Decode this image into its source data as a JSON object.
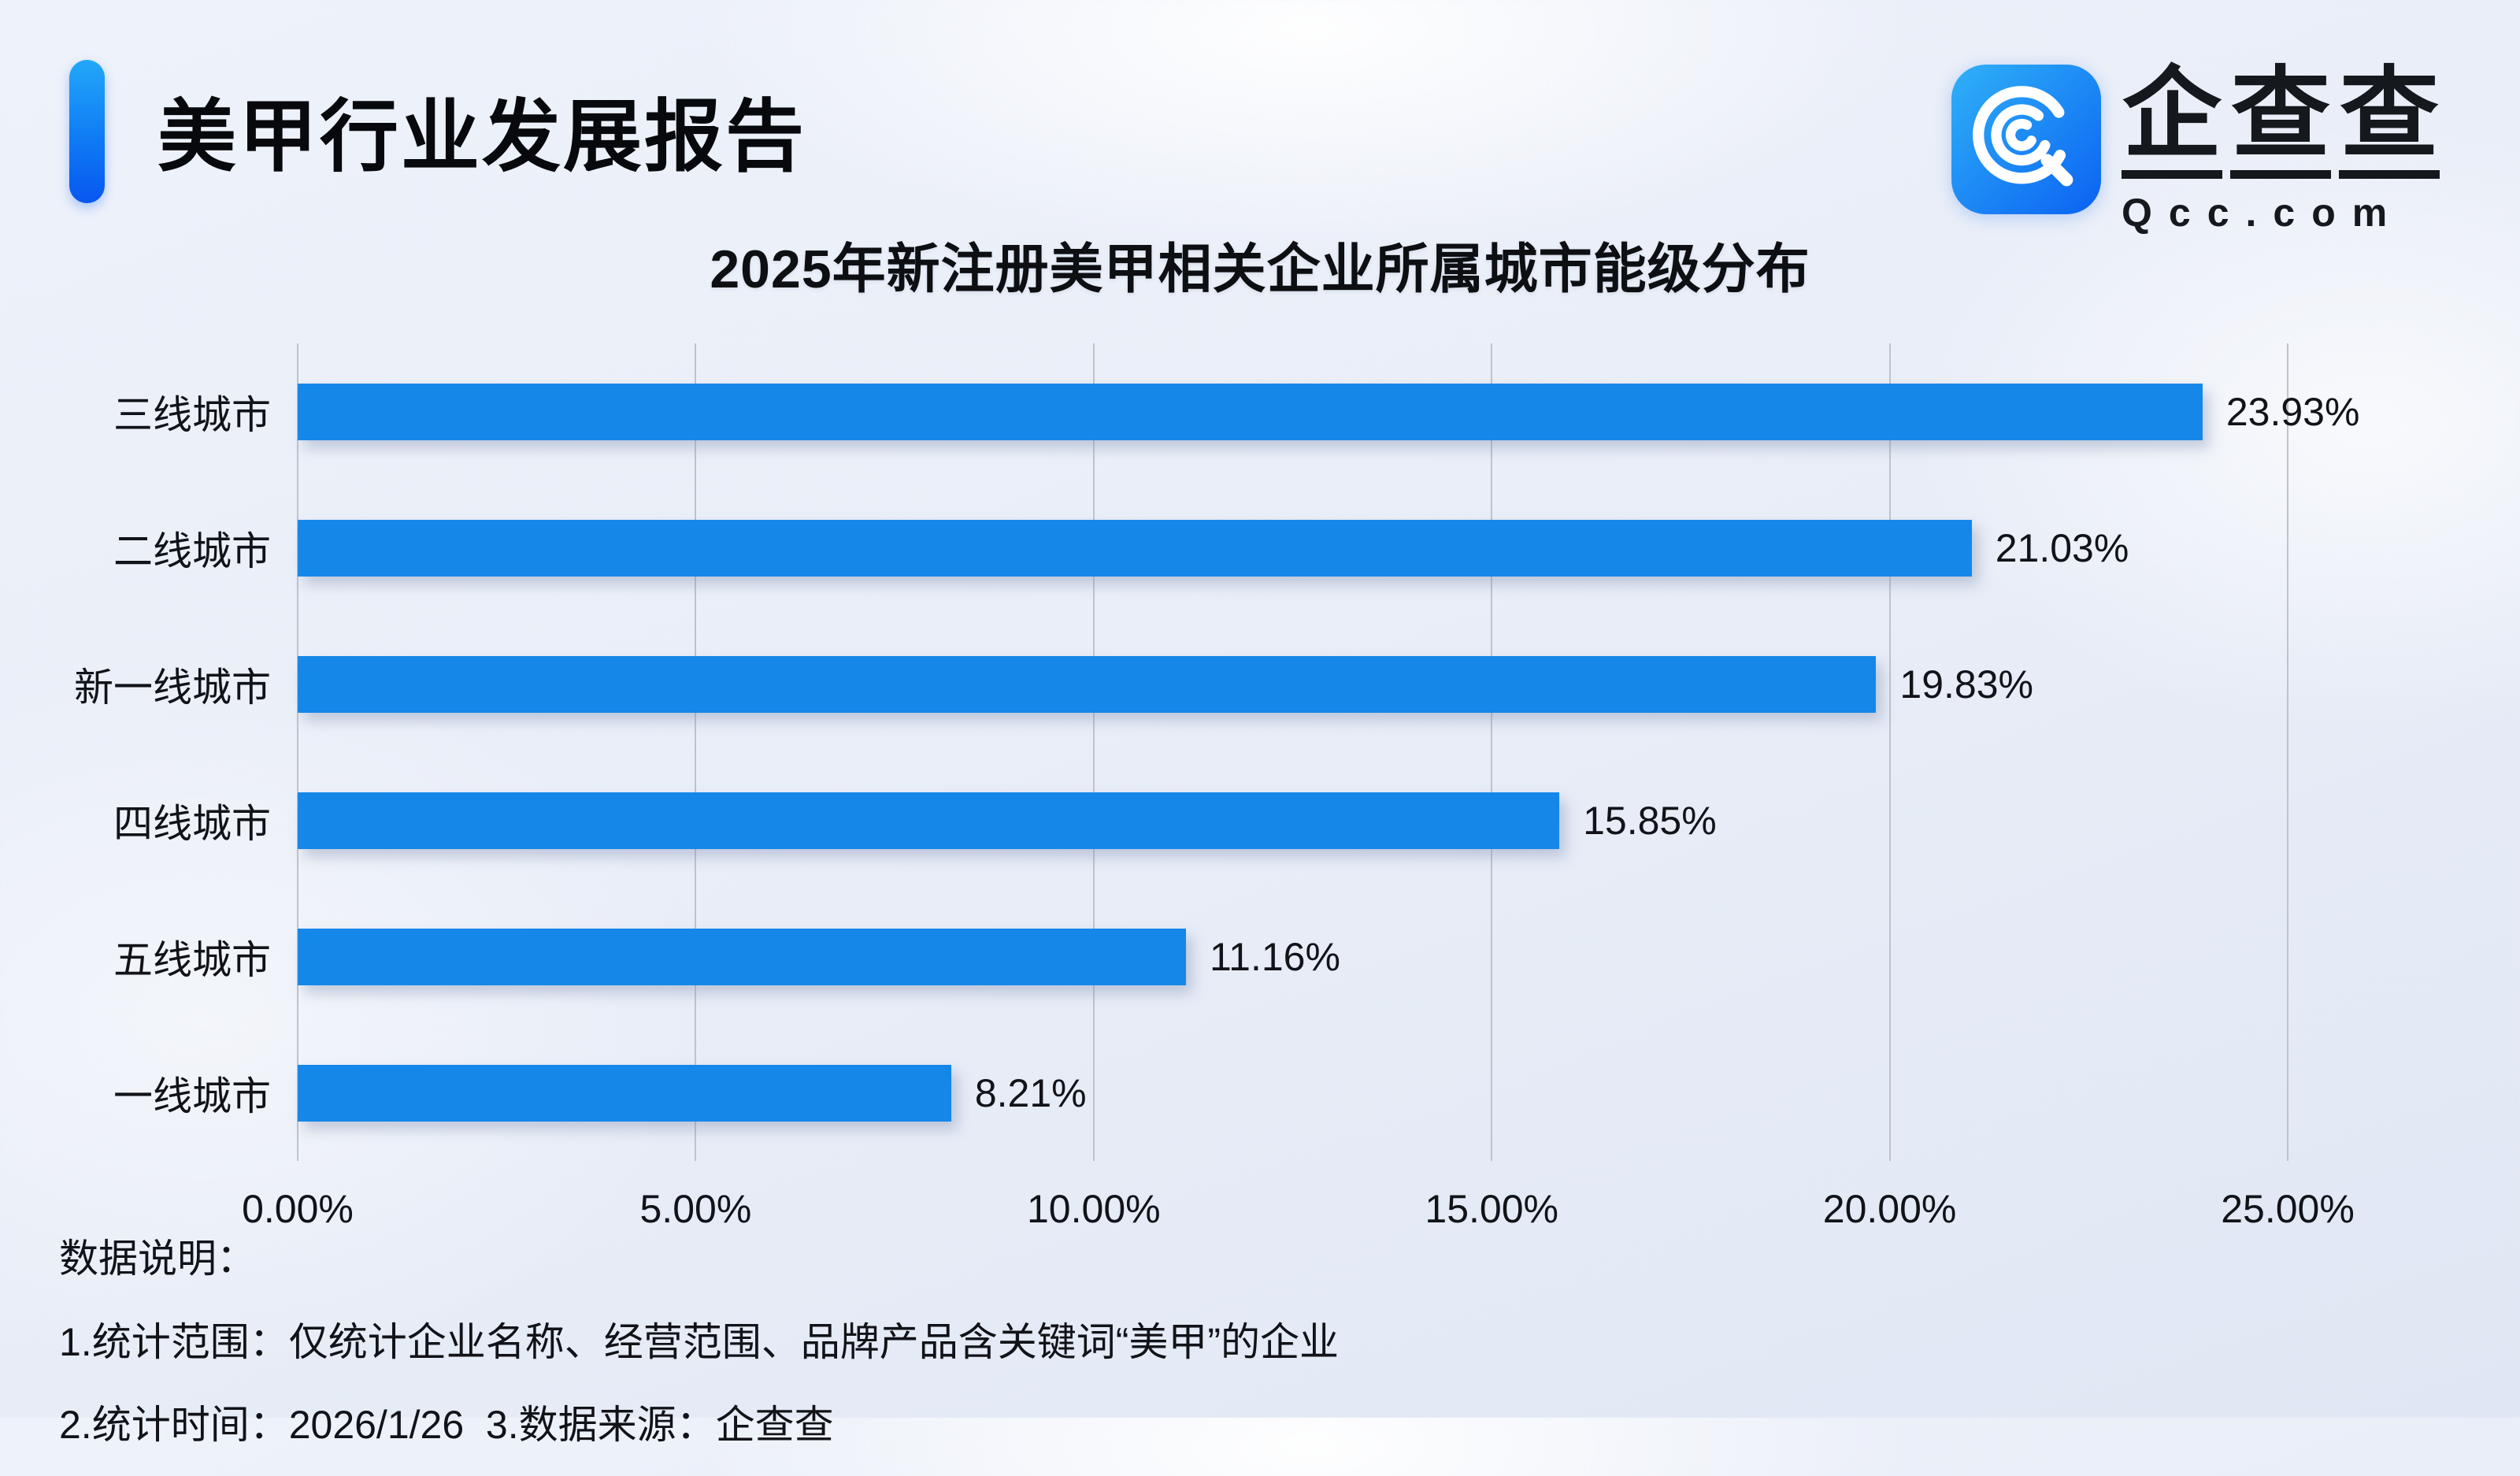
{
  "header": {
    "title": "美甲行业发展报告"
  },
  "logo": {
    "icon": "qcc-logo-icon",
    "brand_cn": "企查查",
    "brand_en": "Qcc.com"
  },
  "chart_data": {
    "type": "bar",
    "orientation": "horizontal",
    "title": "2025年新注册美甲相关企业所属城市能级分布",
    "categories": [
      "三线城市",
      "二线城市",
      "新一线城市",
      "四线城市",
      "五线城市",
      "一线城市"
    ],
    "values": [
      23.93,
      21.03,
      19.83,
      15.85,
      11.16,
      8.21
    ],
    "value_labels": [
      "23.93%",
      "21.03%",
      "19.83%",
      "15.85%",
      "11.16%",
      "8.21%"
    ],
    "xlabel": "",
    "ylabel": "",
    "xlim": [
      0,
      25
    ],
    "x_ticks": {
      "values": [
        0,
        5,
        10,
        15,
        20,
        25
      ],
      "labels": [
        "0.00%",
        "5.00%",
        "10.00%",
        "15.00%",
        "20.00%",
        "25.00%"
      ]
    },
    "grid": true,
    "legend": false,
    "bar_color": "#1587E9"
  },
  "footnotes": {
    "heading": "数据说明：",
    "lines": [
      "1.统计范围：仅统计企业名称、经营范围、品牌产品含关键词“美甲”的企业",
      "2.统计时间：2026/1/26  3.数据来源：企查查"
    ]
  },
  "colors": {
    "bar": "#1587E9",
    "accent_top": "#23A8F9",
    "accent_bottom": "#0857EF",
    "gridline": "#BFC3CB",
    "background": "#E8EDF7",
    "text": "#111318"
  }
}
